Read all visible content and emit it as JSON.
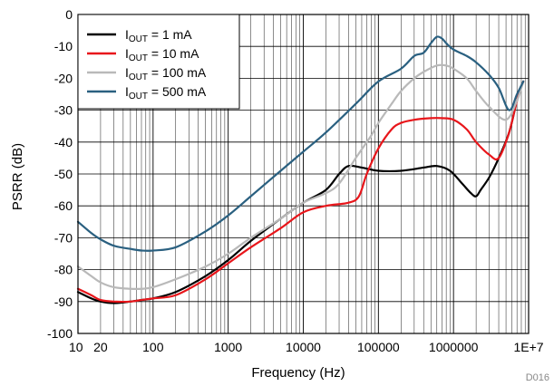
{
  "chart_data": {
    "type": "line",
    "xlabel": "Frequency (Hz)",
    "ylabel": "PSRR (dB)",
    "x_scale": "log",
    "xlim": [
      10,
      10000000
    ],
    "ylim": [
      -100,
      0
    ],
    "grid": true,
    "legend_position": "top-left",
    "figure_id": "D016",
    "x_ticks": [
      {
        "value": 10,
        "label": "10"
      },
      {
        "value": 20,
        "label": "20"
      },
      {
        "value": 100,
        "label": "100"
      },
      {
        "value": 1000,
        "label": "1000"
      },
      {
        "value": 10000,
        "label": "10000"
      },
      {
        "value": 100000,
        "label": "100000"
      },
      {
        "value": 1000000,
        "label": "1000000"
      },
      {
        "value": 10000000,
        "label": "1E+7"
      }
    ],
    "y_ticks": [
      0,
      -10,
      -20,
      -30,
      -40,
      -50,
      -60,
      -70,
      -80,
      -90,
      -100
    ],
    "series": [
      {
        "name": "IOUT = 1 mA",
        "legend_prefix": "I",
        "legend_sub": "OUT",
        "legend_suffix": " = 1 mA",
        "color": "#000000",
        "x": [
          10,
          15,
          20,
          30,
          50,
          70,
          100,
          200,
          500,
          1000,
          2000,
          5000,
          10000,
          20000,
          30000,
          40000,
          60000,
          100000,
          200000,
          400000,
          600000,
          900000,
          1300000,
          1700000,
          2000000,
          2300000,
          3000000,
          4000000,
          5500000,
          7000000,
          8500000
        ],
        "y": [
          -87,
          -89,
          -90,
          -90.5,
          -90,
          -89.5,
          -89,
          -87,
          -82,
          -77,
          -71,
          -64,
          -59,
          -55,
          -50,
          -47.5,
          -48,
          -49,
          -49,
          -48,
          -47.5,
          -49,
          -53,
          -56,
          -57,
          -55,
          -51,
          -45,
          -37,
          -27,
          -21
        ]
      },
      {
        "name": "IOUT = 10 mA",
        "legend_prefix": "I",
        "legend_sub": "OUT",
        "legend_suffix": " = 10 mA",
        "color": "#e8161b",
        "x": [
          10,
          15,
          20,
          30,
          50,
          70,
          100,
          200,
          500,
          1000,
          2000,
          5000,
          10000,
          20000,
          40000,
          55000,
          70000,
          100000,
          150000,
          200000,
          300000,
          500000,
          700000,
          1000000,
          1500000,
          2000000,
          3000000,
          4000000,
          5500000,
          7000000,
          8500000
        ],
        "y": [
          -86,
          -88,
          -89.5,
          -90,
          -90,
          -89.5,
          -89,
          -88,
          -83,
          -78,
          -73,
          -67,
          -62,
          -60,
          -59,
          -57,
          -50,
          -42,
          -36,
          -34,
          -33,
          -32.5,
          -32.5,
          -33,
          -36,
          -40,
          -44,
          -45,
          -37,
          -27,
          -21
        ]
      },
      {
        "name": "IOUT = 100 mA",
        "legend_prefix": "I",
        "legend_sub": "OUT",
        "legend_suffix": " = 100 mA",
        "color": "#b9b9b9",
        "x": [
          10,
          15,
          20,
          30,
          50,
          70,
          100,
          200,
          500,
          1000,
          2000,
          5000,
          10000,
          20000,
          30000,
          50000,
          80000,
          100000,
          150000,
          200000,
          300000,
          400000,
          600000,
          800000,
          1000000,
          1500000,
          2000000,
          3000000,
          5000000,
          7000000,
          8500000
        ],
        "y": [
          -79,
          -82,
          -84,
          -85.5,
          -86,
          -86,
          -85.5,
          -83,
          -79,
          -75,
          -70,
          -64,
          -59,
          -56,
          -53,
          -45,
          -38,
          -34,
          -28,
          -24,
          -20,
          -18,
          -16,
          -16,
          -17,
          -20,
          -24,
          -29,
          -33,
          -27,
          -21
        ]
      },
      {
        "name": "IOUT = 500 mA",
        "legend_prefix": "I",
        "legend_sub": "OUT",
        "legend_suffix": " = 500 mA",
        "color": "#2a6080",
        "x": [
          10,
          15,
          20,
          30,
          50,
          70,
          100,
          200,
          500,
          1000,
          2000,
          5000,
          10000,
          20000,
          50000,
          100000,
          200000,
          300000,
          400000,
          500000,
          600000,
          700000,
          800000,
          1000000,
          1500000,
          2000000,
          3000000,
          4000000,
          5500000,
          7000000,
          8500000
        ],
        "y": [
          -65,
          -68.5,
          -70.5,
          -72.5,
          -73.5,
          -74,
          -74,
          -73,
          -68,
          -63,
          -57,
          -49,
          -43,
          -37,
          -28,
          -21,
          -17,
          -13,
          -12,
          -9,
          -7,
          -7.5,
          -9,
          -11,
          -13,
          -15,
          -19,
          -23,
          -30,
          -25,
          -21
        ]
      }
    ]
  }
}
